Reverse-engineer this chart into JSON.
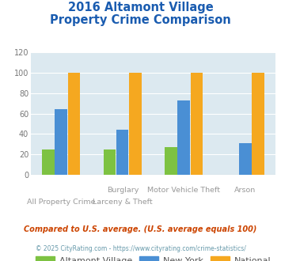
{
  "title_line1": "2016 Altamont Village",
  "title_line2": "Property Crime Comparison",
  "category_labels_top": [
    "",
    "Burglary",
    "Motor Vehicle Theft",
    "Arson"
  ],
  "category_labels_bot": [
    "All Property Crime",
    "Larceny & Theft",
    "",
    ""
  ],
  "altamont": [
    25,
    25,
    27,
    0
  ],
  "new_york": [
    64,
    44,
    73,
    31
  ],
  "national": [
    100,
    100,
    100,
    100
  ],
  "bar_colors": {
    "altamont": "#7dc242",
    "new_york": "#4a8fd4",
    "national": "#f5a820"
  },
  "ylim": [
    0,
    120
  ],
  "yticks": [
    0,
    20,
    40,
    60,
    80,
    100,
    120
  ],
  "title_color": "#1a5cb0",
  "background_color": "#dce9f0",
  "legend_labels": [
    "Altamont Village",
    "New York",
    "National"
  ],
  "footnote1": "Compared to U.S. average. (U.S. average equals 100)",
  "footnote2": "© 2025 CityRating.com - https://www.cityrating.com/crime-statistics/",
  "footnote1_color": "#cc4400",
  "footnote2_color": "#6699aa"
}
